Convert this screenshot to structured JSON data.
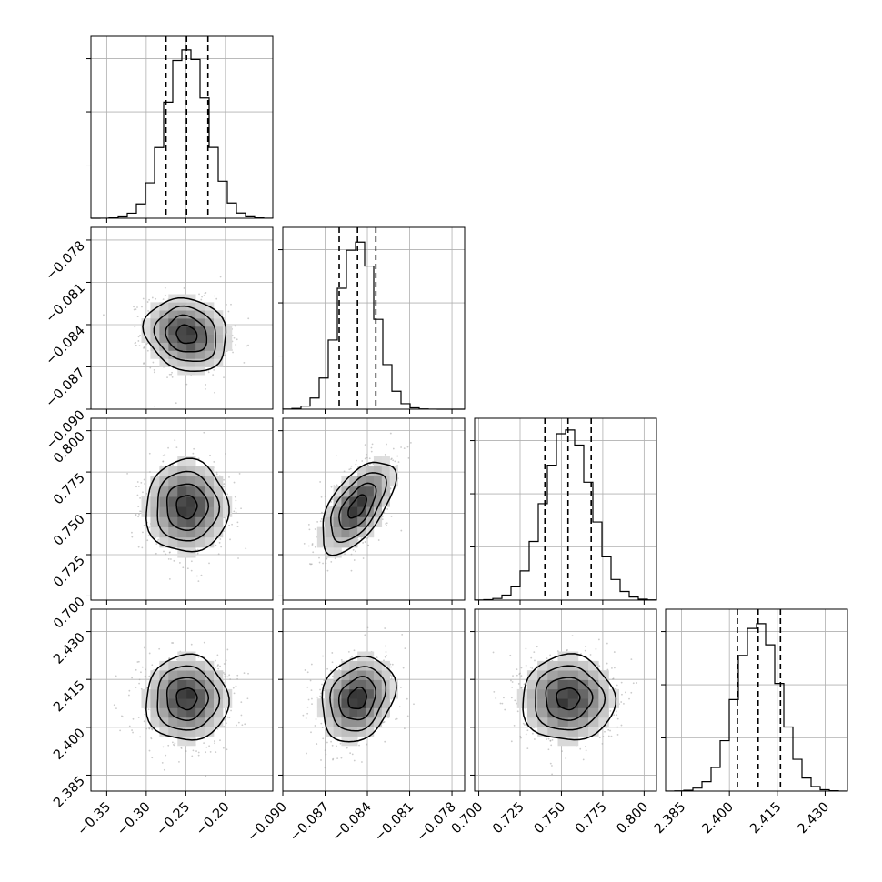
{
  "chart_data": {
    "type": "corner",
    "parameters": [
      {
        "range": [
          -0.37,
          -0.14
        ],
        "ticks": [
          -0.35,
          -0.3,
          -0.25,
          -0.2
        ],
        "tick_labels": [
          "−0.35",
          "−0.30",
          "−0.25",
          "−0.20"
        ],
        "quantiles": [
          -0.275,
          -0.249,
          -0.222
        ],
        "mean": -0.249,
        "sd": 0.026,
        "hist_y_ticks": [
          0,
          680,
          1360,
          2040
        ]
      },
      {
        "range": [
          -0.09,
          -0.0771
        ],
        "ticks": [
          -0.09,
          -0.087,
          -0.084,
          -0.081,
          -0.078
        ],
        "tick_labels": [
          "−0.090",
          "−0.087",
          "−0.084",
          "−0.081",
          "−0.078"
        ],
        "quantiles": [
          -0.086,
          -0.0847,
          -0.0834
        ],
        "mean": -0.0847,
        "sd": 0.0013,
        "hist_y_ticks": [
          0,
          690,
          1380,
          2070
        ]
      },
      {
        "range": [
          0.6975,
          0.8075
        ],
        "ticks": [
          0.7,
          0.725,
          0.75,
          0.775,
          0.8
        ],
        "tick_labels": [
          "0.700",
          "0.725",
          "0.750",
          "0.775",
          "0.800"
        ],
        "quantiles": [
          0.74,
          0.754,
          0.768
        ],
        "mean": 0.754,
        "sd": 0.014,
        "hist_y_ticks": [
          0,
          670,
          1340,
          2010
        ]
      },
      {
        "range": [
          2.38,
          2.437
        ],
        "ticks": [
          2.385,
          2.4,
          2.415,
          2.43
        ],
        "tick_labels": [
          "2.385",
          "2.400",
          "2.415",
          "2.430"
        ],
        "quantiles": [
          2.4025,
          2.409,
          2.416
        ],
        "mean": 2.409,
        "sd": 0.0067,
        "hist_y_ticks": [
          0,
          640,
          1280,
          1920
        ]
      }
    ],
    "correlations": [
      {
        "pair": [
          0,
          1
        ],
        "r": -0.15
      },
      {
        "pair": [
          0,
          2
        ],
        "r": 0.0
      },
      {
        "pair": [
          1,
          2
        ],
        "r": 0.6
      },
      {
        "pair": [
          0,
          3
        ],
        "r": 0.0
      },
      {
        "pair": [
          1,
          3
        ],
        "r": 0.2
      },
      {
        "pair": [
          2,
          3
        ],
        "r": 0.0
      }
    ],
    "histogram": {
      "bins": 20,
      "style": "step",
      "color": "#000000"
    },
    "scatter_color": "#a0a0a0",
    "contour_color": "#000000",
    "grid": true,
    "quantile_line_style": "dashed",
    "quantile_levels": [
      0.16,
      0.5,
      0.84
    ]
  }
}
